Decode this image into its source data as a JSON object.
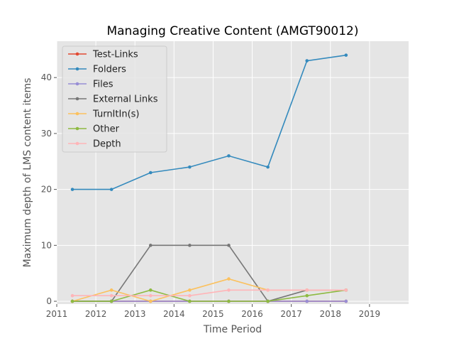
{
  "chart_data": {
    "type": "line",
    "title": "Managing Creative Content (AMGT90012)",
    "xlabel": "Time Period",
    "ylabel": "Maximum depth of LMS content items",
    "xlim": [
      2011.0,
      2020.0
    ],
    "ylim": [
      -0.5,
      46.5
    ],
    "xticks": [
      2011,
      2012,
      2013,
      2014,
      2015,
      2016,
      2017,
      2018,
      2019
    ],
    "xtick_labels": [
      "2011",
      "2012",
      "2013",
      "2014",
      "2015",
      "2016",
      "2017",
      "2018",
      "2019"
    ],
    "yticks": [
      0,
      10,
      20,
      30,
      40
    ],
    "ytick_labels": [
      "0",
      "10",
      "20",
      "30",
      "40"
    ],
    "grid": true,
    "legend_position": "top-left",
    "x": [
      2011.4,
      2012.4,
      2013.4,
      2014.4,
      2015.4,
      2016.4,
      2017.4,
      2018.4
    ],
    "series": [
      {
        "name": "Test-Links",
        "color": "#e24a33",
        "values": [
          0,
          0,
          0,
          0,
          0,
          0,
          0,
          0
        ]
      },
      {
        "name": "Folders",
        "color": "#348abd",
        "values": [
          20,
          20,
          23,
          24,
          26,
          24,
          43,
          44
        ]
      },
      {
        "name": "Files",
        "color": "#988ed5",
        "values": [
          0,
          0,
          0,
          0,
          0,
          0,
          0,
          0
        ]
      },
      {
        "name": "External Links",
        "color": "#777777",
        "values": [
          0,
          0,
          10,
          10,
          10,
          0,
          2,
          2
        ]
      },
      {
        "name": "TurnItIn(s)",
        "color": "#fbc15e",
        "values": [
          0,
          2,
          0,
          2,
          4,
          2,
          2,
          2
        ]
      },
      {
        "name": "Other",
        "color": "#8eba42",
        "values": [
          0,
          0,
          2,
          0,
          0,
          0,
          1,
          2
        ]
      },
      {
        "name": "Depth",
        "color": "#ffb5b8",
        "values": [
          1,
          1,
          1,
          1,
          2,
          2,
          2,
          2
        ]
      }
    ]
  }
}
